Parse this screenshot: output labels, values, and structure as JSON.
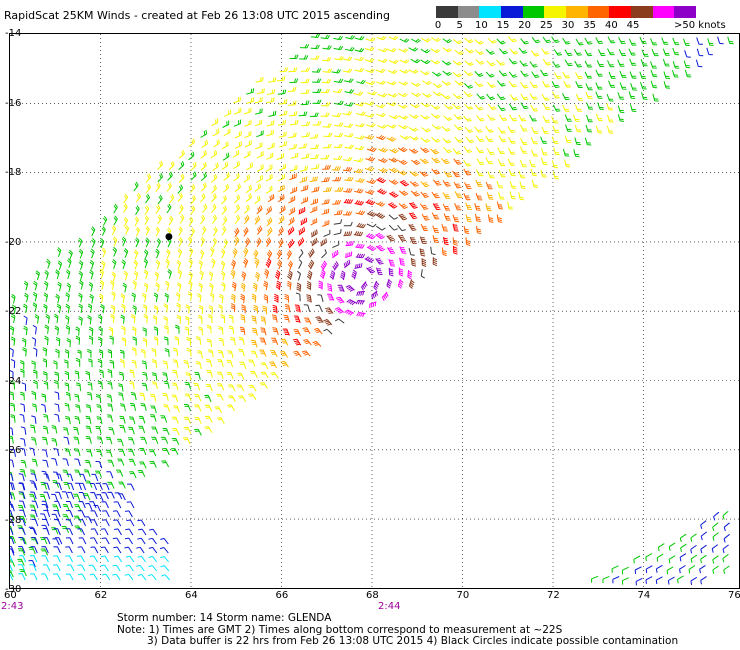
{
  "title": "RapidScat 25KM Winds - created at Feb 26 13:08 UTC 2015 ascending",
  "colorbar": {
    "colors": [
      "#3a3a3a",
      "#8c8c8c",
      "#00e4ff",
      "#0a19d8",
      "#00c800",
      "#f5f500",
      "#ffb400",
      "#ff6400",
      "#ff0000",
      "#8c3c1e",
      "#ff00ff",
      "#8c00c8"
    ],
    "labels": [
      "0",
      "5",
      "10",
      "15",
      "20",
      "25",
      "30",
      "35",
      "40",
      "45",
      ">50 knots"
    ]
  },
  "map": {
    "lat_labels": [
      "-14",
      "-16",
      "-18",
      "-20",
      "-22",
      "-24",
      "-26",
      "-28",
      "-30"
    ],
    "lon_labels": [
      "60",
      "62",
      "64",
      "66",
      "68",
      "70",
      "72",
      "74",
      "76"
    ],
    "time_labels": [
      "2:43",
      "2:44"
    ]
  },
  "info": {
    "line1": "Storm number: 14     Storm name: GLENDA",
    "line2": "Note: 1) Times are GMT  2) Times along bottom correspond to measurement at ~22S",
    "line3": "3) Data buffer is 22 hrs from Feb 26 13:08 UTC 2015   4) Black Circles indicate possible contamination"
  }
}
